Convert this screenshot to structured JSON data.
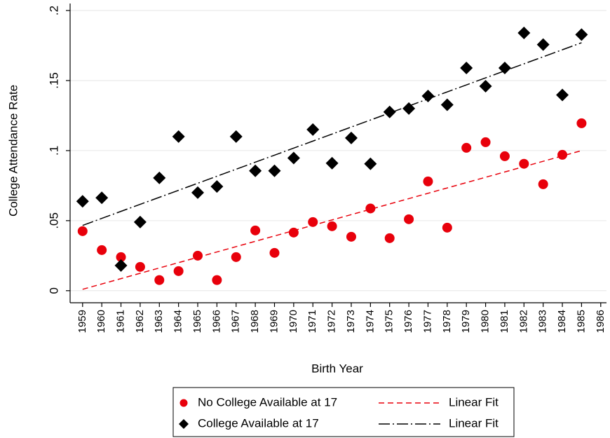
{
  "chart_data": {
    "type": "scatter",
    "y_label": "College Attendance Rate",
    "x_label": "Birth Year",
    "x": [
      1959,
      1960,
      1961,
      1962,
      1963,
      1964,
      1965,
      1966,
      1967,
      1968,
      1969,
      1970,
      1971,
      1972,
      1973,
      1974,
      1975,
      1976,
      1977,
      1978,
      1979,
      1980,
      1981,
      1982,
      1983,
      1984,
      1985
    ],
    "series": [
      {
        "name": "No College Available at 17",
        "color": "#e8000b",
        "style": "scatter",
        "marker": "circle",
        "values": [
          0.0425,
          0.029,
          0.024,
          0.017,
          0.0076,
          0.014,
          0.025,
          0.0076,
          0.024,
          0.043,
          0.027,
          0.0415,
          0.049,
          0.046,
          0.0385,
          0.0587,
          0.0375,
          0.051,
          0.078,
          0.045,
          0.102,
          0.106,
          0.096,
          0.0906,
          0.076,
          0.097,
          0.1195
        ]
      },
      {
        "name": "College Available at 17",
        "color": "#000000",
        "style": "scatter",
        "marker": "diamond",
        "values": [
          0.0638,
          0.0663,
          0.018,
          0.049,
          0.0805,
          0.11,
          0.07,
          0.0744,
          0.11,
          0.0856,
          0.0856,
          0.0947,
          0.115,
          0.091,
          0.109,
          0.0906,
          0.1276,
          0.13,
          0.139,
          0.1327,
          0.159,
          0.146,
          0.159,
          0.184,
          0.1757,
          0.1397,
          0.1828
        ]
      },
      {
        "name": "Linear Fit",
        "color": "#e8000b",
        "style": "line",
        "dash": "8,5",
        "x": [
          1959,
          1985
        ],
        "values": [
          0.001,
          0.1
        ]
      },
      {
        "name": "Linear Fit",
        "color": "#000000",
        "style": "line",
        "dash": "16,4,2,4",
        "x": [
          1959,
          1985
        ],
        "values": [
          0.0466,
          0.177
        ]
      }
    ],
    "xlim": [
      1958.35,
      1986.3
    ],
    "xticks": [
      1959,
      1960,
      1961,
      1962,
      1963,
      1964,
      1965,
      1966,
      1967,
      1968,
      1969,
      1970,
      1971,
      1972,
      1973,
      1974,
      1975,
      1976,
      1977,
      1978,
      1979,
      1980,
      1981,
      1982,
      1983,
      1984,
      1985,
      1986
    ],
    "ylim": [
      -0.0086,
      0.205
    ],
    "yticks": [
      0,
      {
        "value": 0.05,
        "label": ".05"
      },
      {
        "value": 0.1,
        "label": ".1"
      },
      {
        "value": 0.15,
        "label": ".15"
      },
      {
        "value": 0.2,
        "label": ".2"
      }
    ],
    "grid": true,
    "legend": "bottom"
  }
}
